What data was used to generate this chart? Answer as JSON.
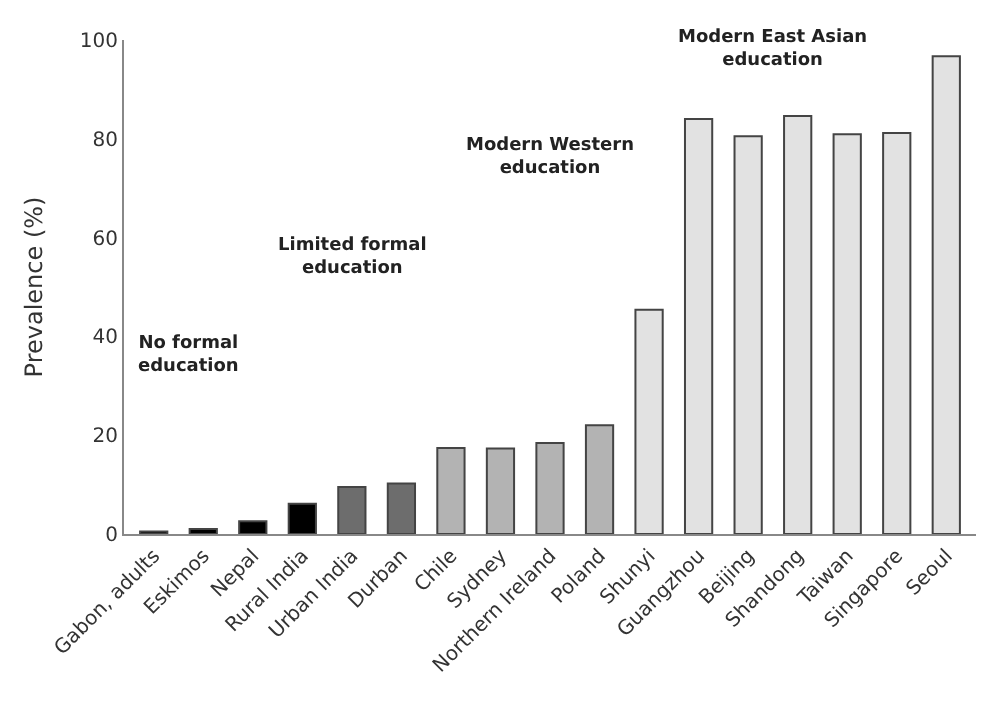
{
  "chart_data": {
    "type": "bar",
    "ylabel": "Prevalence (%)",
    "categories": [
      "Gabon, adults",
      "Eskimos",
      "Nepal",
      "Rural India",
      "Urban India",
      "Durban",
      "Chile",
      "Sydney",
      "Northern Ireland",
      "Poland",
      "Shunyi",
      "Guangzhou",
      "Beijing",
      "Shandong",
      "Taiwan",
      "Singapore",
      "Seoul"
    ],
    "values": [
      0.5,
      1.0,
      2.6,
      6.1,
      9.5,
      10.2,
      17.4,
      17.3,
      18.4,
      22,
      45.4,
      84,
      80.5,
      84.6,
      80.9,
      81.2,
      96.7
    ],
    "colors": [
      "#000000",
      "#000000",
      "#000000",
      "#000000",
      "#6d6d6d",
      "#6d6d6d",
      "#b3b3b3",
      "#b3b3b3",
      "#b3b3b3",
      "#b3b3b3",
      "#e2e2e2",
      "#e2e2e2",
      "#e2e2e2",
      "#e2e2e2",
      "#e2e2e2",
      "#e2e2e2",
      "#e2e2e2"
    ],
    "ylim": [
      0,
      100
    ],
    "yticks": [
      0,
      20,
      40,
      60,
      80,
      100
    ],
    "annotations": [
      "No formal education",
      "Limited formal education",
      "Modern Western education",
      "Modern East Asian education"
    ]
  }
}
